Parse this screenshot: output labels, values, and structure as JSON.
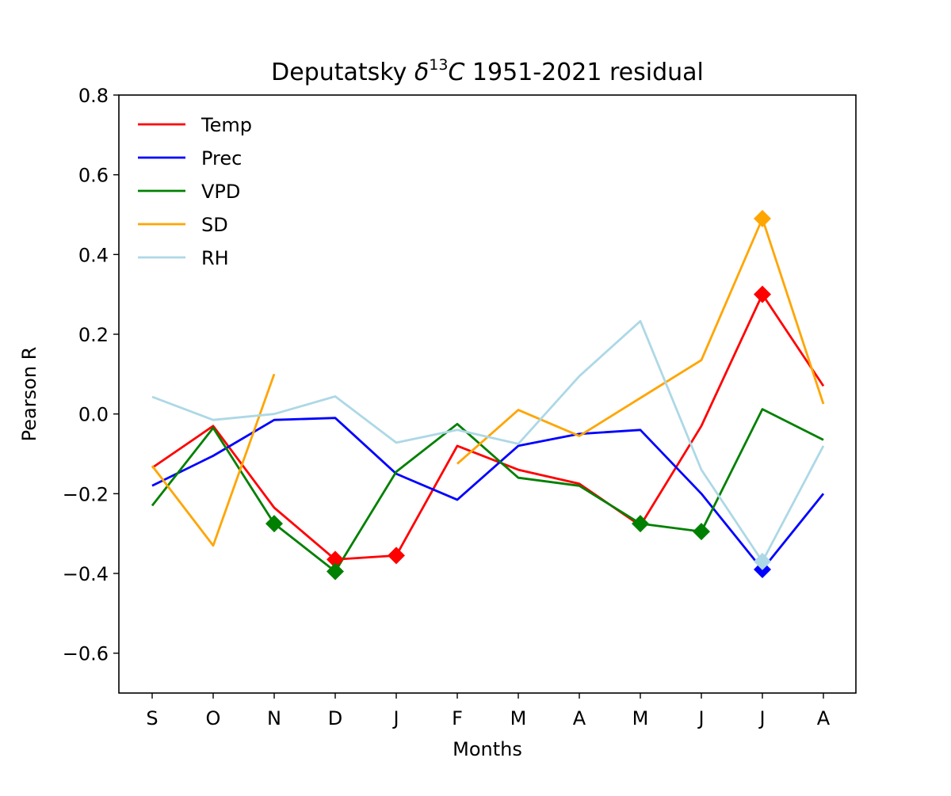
{
  "chart_data": {
    "type": "line",
    "title": {
      "prefix": "Deputatsky ",
      "symbol": "δ",
      "superscript": "13",
      "element": "C",
      "suffix": " 1951-2021 residual"
    },
    "xlabel": "Months",
    "ylabel": "Pearson R",
    "categories": [
      "S",
      "O",
      "N",
      "D",
      "J",
      "F",
      "M",
      "A",
      "M",
      "J",
      "J",
      "A"
    ],
    "ylim": [
      -0.7,
      0.8
    ],
    "yticks": [
      -0.6,
      -0.4,
      -0.2,
      0.0,
      0.2,
      0.4,
      0.6,
      0.8
    ],
    "ytick_labels": [
      "−0.6",
      "−0.4",
      "−0.2",
      "0.0",
      "0.2",
      "0.4",
      "0.6",
      "0.8"
    ],
    "grid": false,
    "legend_position": "top-left",
    "marker": "diamond",
    "series": [
      {
        "name": "Temp",
        "color": "#ff0000",
        "values": [
          -0.135,
          -0.03,
          -0.235,
          -0.365,
          -0.355,
          -0.08,
          -0.14,
          -0.175,
          -0.28,
          -0.03,
          0.3,
          0.07
        ],
        "markers": [
          3,
          4,
          10
        ]
      },
      {
        "name": "Prec",
        "color": "#0000ff",
        "values": [
          -0.18,
          -0.105,
          -0.015,
          -0.01,
          -0.15,
          -0.215,
          -0.08,
          -0.05,
          -0.04,
          -0.2,
          -0.39,
          -0.2
        ],
        "markers": [
          10
        ]
      },
      {
        "name": "VPD",
        "color": "#008000",
        "values": [
          -0.23,
          -0.035,
          -0.275,
          -0.395,
          -0.145,
          -0.025,
          -0.16,
          -0.18,
          -0.275,
          -0.295,
          0.012,
          -0.065
        ],
        "markers": [
          2,
          3,
          8,
          9
        ]
      },
      {
        "name": "SD",
        "color": "#ffa500",
        "values": [
          -0.13,
          -0.33,
          0.1,
          null,
          -0.125,
          null,
          0.01,
          -0.055,
          0.04,
          0.135,
          0.49,
          0.025
        ],
        "segments": [
          [
            0,
            2
          ],
          [
            5,
            11
          ]
        ],
        "segment_start_values": [
          null,
          -0.125
        ],
        "markers": [
          10
        ]
      },
      {
        "name": "RH",
        "color": "#add8e6",
        "values": [
          0.043,
          -0.015,
          0.0,
          0.044,
          -0.072,
          -0.04,
          -0.075,
          0.095,
          0.233,
          -0.14,
          -0.37,
          -0.08
        ],
        "markers": [
          10
        ]
      }
    ]
  }
}
